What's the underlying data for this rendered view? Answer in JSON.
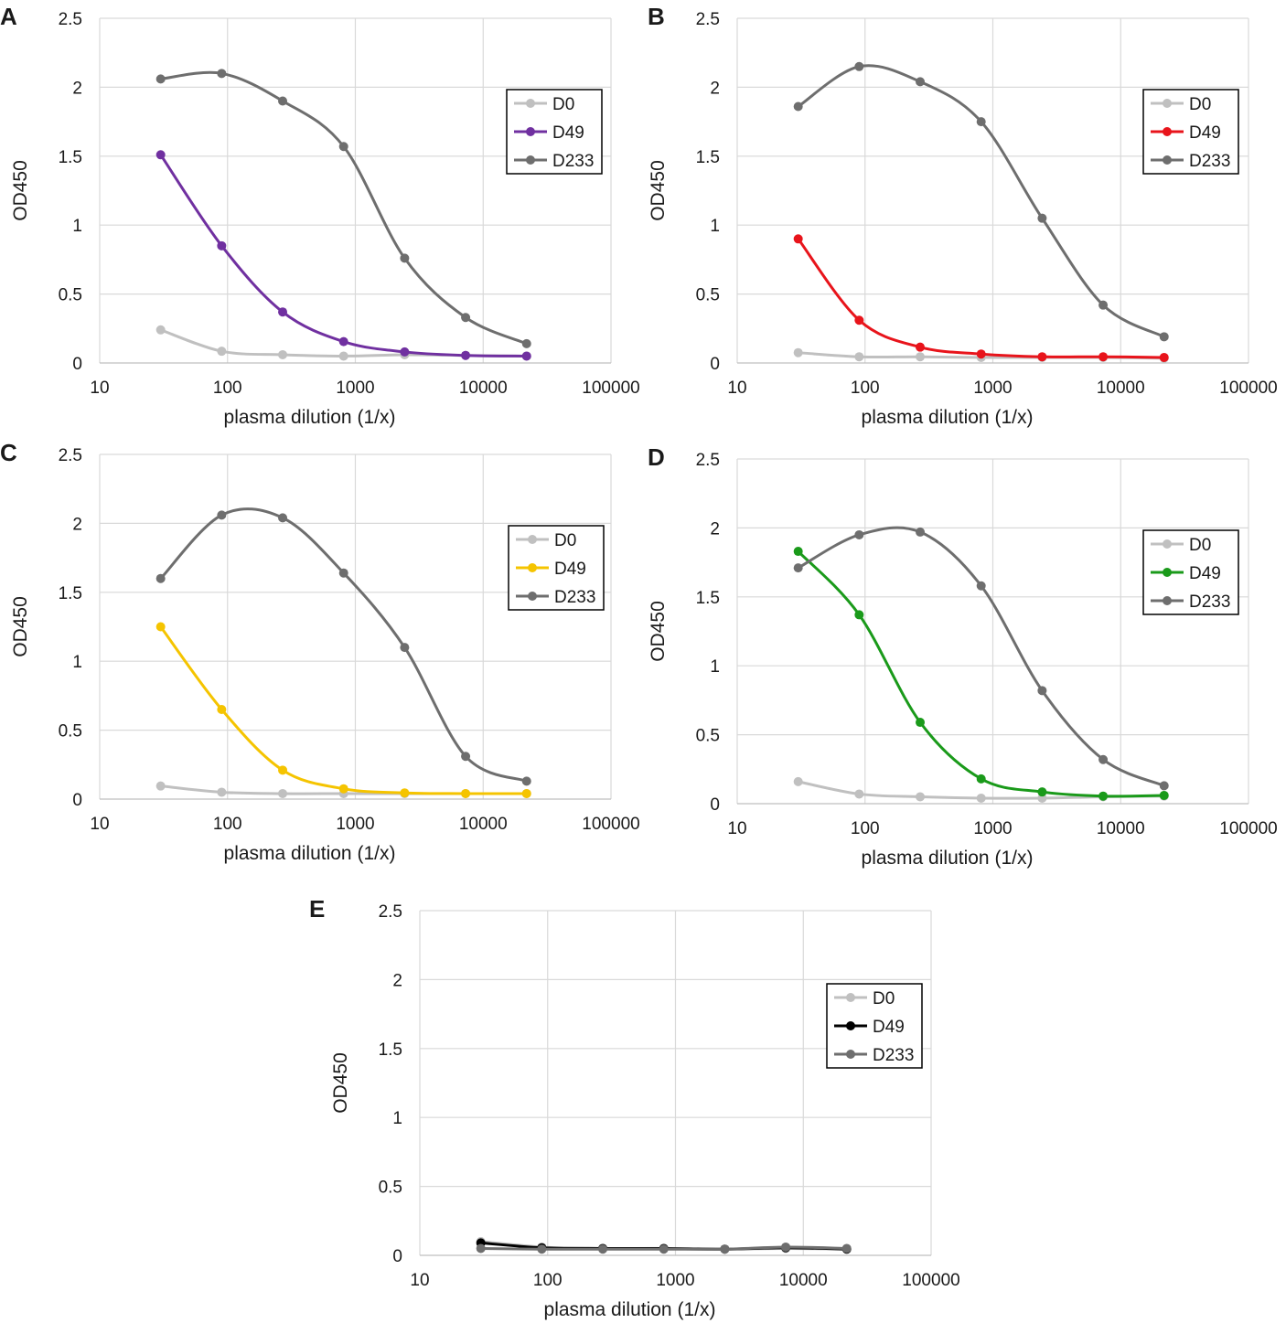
{
  "figure": {
    "common": {
      "x_tick_labels": [
        "10",
        "100",
        "1000",
        "10000",
        "100000"
      ],
      "y_tick_labels": [
        "0",
        "0.5",
        "1",
        "1.5",
        "2",
        "2.5"
      ]
    }
  },
  "chart_data": [
    {
      "panel": "A",
      "type": "line",
      "xlabel": "plasma dilution (1/x)",
      "ylabel": "OD450",
      "xscale": "log",
      "xlim": [
        10,
        100000
      ],
      "ylim": [
        0,
        2.5
      ],
      "grid": true,
      "legend_position": "upper-right",
      "x": [
        30,
        90,
        270,
        810,
        2430,
        7290,
        21870
      ],
      "series": [
        {
          "name": "D0",
          "color": "#c0c0c0",
          "values": [
            0.24,
            0.085,
            0.06,
            0.05,
            0.06,
            0.055,
            0.05
          ]
        },
        {
          "name": "D49",
          "color": "#7030a0",
          "values": [
            1.51,
            0.85,
            0.37,
            0.155,
            0.08,
            0.055,
            0.05
          ]
        },
        {
          "name": "D233",
          "color": "#6e6e6e",
          "values": [
            2.06,
            2.1,
            1.9,
            1.57,
            0.76,
            0.33,
            0.14
          ]
        }
      ]
    },
    {
      "panel": "B",
      "type": "line",
      "xlabel": "plasma dilution (1/x)",
      "ylabel": "OD450",
      "xscale": "log",
      "xlim": [
        10,
        100000
      ],
      "ylim": [
        0,
        2.5
      ],
      "grid": true,
      "legend_position": "upper-right",
      "x": [
        30,
        90,
        270,
        810,
        2430,
        7290,
        21870
      ],
      "series": [
        {
          "name": "D0",
          "color": "#c0c0c0",
          "values": [
            0.075,
            0.045,
            0.045,
            0.04,
            0.04,
            0.04,
            0.035
          ]
        },
        {
          "name": "D49",
          "color": "#e8141b",
          "values": [
            0.9,
            0.31,
            0.115,
            0.065,
            0.045,
            0.045,
            0.04
          ]
        },
        {
          "name": "D233",
          "color": "#6e6e6e",
          "values": [
            1.86,
            2.15,
            2.04,
            1.75,
            1.05,
            0.42,
            0.19
          ]
        }
      ]
    },
    {
      "panel": "C",
      "type": "line",
      "xlabel": "plasma dilution (1/x)",
      "ylabel": "OD450",
      "xscale": "log",
      "xlim": [
        10,
        100000
      ],
      "ylim": [
        0,
        2.5
      ],
      "grid": true,
      "legend_position": "upper-right",
      "x": [
        30,
        90,
        270,
        810,
        2430,
        7290,
        21870
      ],
      "series": [
        {
          "name": "D0",
          "color": "#c0c0c0",
          "values": [
            0.095,
            0.05,
            0.04,
            0.04,
            0.04,
            0.04,
            0.04
          ]
        },
        {
          "name": "D49",
          "color": "#f5c400",
          "values": [
            1.25,
            0.65,
            0.21,
            0.075,
            0.045,
            0.04,
            0.04
          ]
        },
        {
          "name": "D233",
          "color": "#6e6e6e",
          "values": [
            1.6,
            2.06,
            2.04,
            1.64,
            1.1,
            0.31,
            0.13
          ]
        }
      ]
    },
    {
      "panel": "D",
      "type": "line",
      "xlabel": "plasma dilution (1/x)",
      "ylabel": "OD450",
      "xscale": "log",
      "xlim": [
        10,
        100000
      ],
      "ylim": [
        0,
        2.5
      ],
      "grid": true,
      "legend_position": "upper-right",
      "x": [
        30,
        90,
        270,
        810,
        2430,
        7290,
        21870
      ],
      "series": [
        {
          "name": "D0",
          "color": "#c0c0c0",
          "values": [
            0.16,
            0.07,
            0.05,
            0.04,
            0.04,
            0.05,
            0.055
          ]
        },
        {
          "name": "D49",
          "color": "#1a9a1a",
          "values": [
            1.83,
            1.37,
            0.59,
            0.18,
            0.085,
            0.055,
            0.06
          ]
        },
        {
          "name": "D233",
          "color": "#6e6e6e",
          "values": [
            1.71,
            1.95,
            1.97,
            1.58,
            0.82,
            0.32,
            0.13
          ]
        }
      ]
    },
    {
      "panel": "E",
      "type": "line",
      "xlabel": "plasma dilution (1/x)",
      "ylabel": "OD450",
      "xscale": "log",
      "xlim": [
        10,
        100000
      ],
      "ylim": [
        0,
        2.5
      ],
      "grid": true,
      "legend_position": "upper-right",
      "x": [
        30,
        90,
        270,
        810,
        2430,
        7290,
        21870
      ],
      "series": [
        {
          "name": "D0",
          "color": "#c0c0c0",
          "values": [
            0.1,
            0.06,
            0.05,
            0.05,
            0.045,
            0.05,
            0.045
          ]
        },
        {
          "name": "D49",
          "color": "#000000",
          "values": [
            0.09,
            0.055,
            0.05,
            0.05,
            0.045,
            0.055,
            0.045
          ]
        },
        {
          "name": "D233",
          "color": "#6e6e6e",
          "values": [
            0.05,
            0.045,
            0.045,
            0.045,
            0.045,
            0.06,
            0.05
          ]
        }
      ]
    }
  ]
}
